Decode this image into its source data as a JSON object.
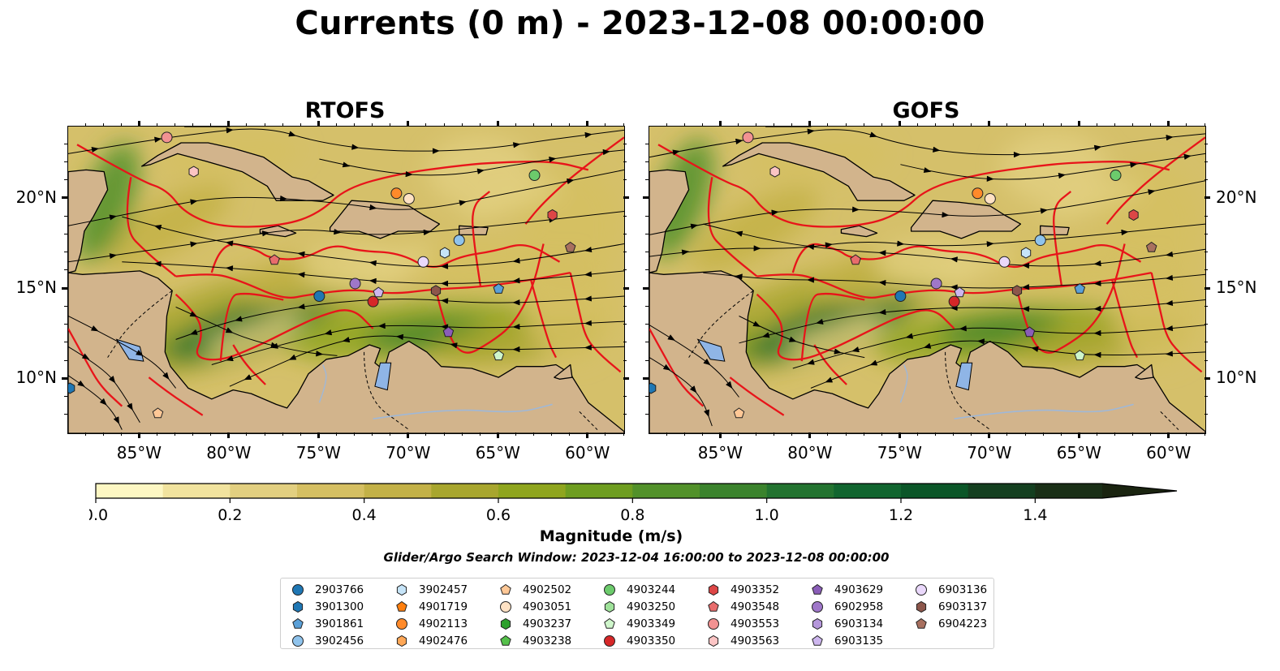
{
  "title": "Currents (0 m) - 2023-12-08 00:00:00",
  "panels": [
    {
      "id": "rtofs",
      "title": "RTOFS"
    },
    {
      "id": "gofs",
      "title": "GOFS"
    }
  ],
  "axes": {
    "lon_ticks": [
      "85°W",
      "80°W",
      "75°W",
      "70°W",
      "65°W",
      "60°W"
    ],
    "lat_ticks": [
      "20°N",
      "15°N",
      "10°N"
    ]
  },
  "colorbar": {
    "label": "Magnitude (m/s)",
    "ticks": [
      "0.0",
      "0.2",
      "0.4",
      "0.6",
      "0.8",
      "1.0",
      "1.2",
      "1.4"
    ],
    "range": [
      0,
      1.5
    ],
    "extend": "max",
    "colors": [
      "#fdf7c3",
      "#f1e39e",
      "#e2cf80",
      "#d5bf62",
      "#c3b147",
      "#a8a62e",
      "#8fa51e",
      "#6e9d20",
      "#52912a",
      "#3b832d",
      "#237330",
      "#11652f",
      "#0b5628",
      "#143f20",
      "#1a2f17"
    ]
  },
  "search_window": "Glider/Argo Search Window: 2023-12-04 16:00:00 to 2023-12-08 00:00:00",
  "legend": {
    "columns": [
      [
        {
          "id": "2903766",
          "color": "#1f77b4",
          "shape": "circle"
        },
        {
          "id": "3901300",
          "color": "#1f77b4",
          "shape": "hexagon"
        },
        {
          "id": "3901861",
          "color": "#5aa0d8",
          "shape": "pentagon"
        },
        {
          "id": "3902456",
          "color": "#8fc3ec",
          "shape": "circle"
        }
      ],
      [
        {
          "id": "3902457",
          "color": "#c6e4f8",
          "shape": "hexagon"
        },
        {
          "id": "4901719",
          "color": "#ff7f0e",
          "shape": "pentagon"
        },
        {
          "id": "4902113",
          "color": "#ff8a2a",
          "shape": "circle"
        },
        {
          "id": "4902476",
          "color": "#ffa756",
          "shape": "hexagon"
        }
      ],
      [
        {
          "id": "4902502",
          "color": "#ffc896",
          "shape": "pentagon"
        },
        {
          "id": "4903051",
          "color": "#ffe2c4",
          "shape": "circle"
        },
        {
          "id": "4903237",
          "color": "#2ca02c",
          "shape": "hexagon"
        },
        {
          "id": "4903238",
          "color": "#54c04a",
          "shape": "pentagon"
        }
      ],
      [
        {
          "id": "4903244",
          "color": "#6ccb6c",
          "shape": "circle"
        },
        {
          "id": "4903250",
          "color": "#9fe29a",
          "shape": "hexagon"
        },
        {
          "id": "4903349",
          "color": "#cff6cb",
          "shape": "pentagon"
        },
        {
          "id": "4903350",
          "color": "#d62728",
          "shape": "circle"
        }
      ],
      [
        {
          "id": "4903352",
          "color": "#dd4646",
          "shape": "hexagon"
        },
        {
          "id": "4903548",
          "color": "#e86c6c",
          "shape": "pentagon"
        },
        {
          "id": "4903553",
          "color": "#f29292",
          "shape": "circle"
        },
        {
          "id": "4903563",
          "color": "#fbc4c4",
          "shape": "hexagon"
        }
      ],
      [
        {
          "id": "4903629",
          "color": "#8a5db8",
          "shape": "pentagon"
        },
        {
          "id": "6902958",
          "color": "#9f77c9",
          "shape": "circle"
        },
        {
          "id": "6903134",
          "color": "#b597db",
          "shape": "hexagon"
        },
        {
          "id": "6903135",
          "color": "#cdb6ee",
          "shape": "pentagon"
        }
      ],
      [
        {
          "id": "6903136",
          "color": "#ead8fb",
          "shape": "circle"
        },
        {
          "id": "6903137",
          "color": "#8c564b",
          "shape": "hexagon"
        },
        {
          "id": "6904223",
          "color": "#a8705f",
          "shape": "pentagon"
        }
      ]
    ]
  },
  "floats": [
    {
      "color": "#f29292",
      "shape": "circle",
      "lon": -83.5,
      "lat": 23.4
    },
    {
      "color": "#fbc4c4",
      "shape": "hexagon",
      "lon": -82.0,
      "lat": 21.5
    },
    {
      "color": "#ff8a2a",
      "shape": "circle",
      "lon": -70.7,
      "lat": 20.3
    },
    {
      "color": "#ffe2c4",
      "shape": "circle",
      "lon": -70.0,
      "lat": 20.0
    },
    {
      "color": "#6ccb6c",
      "shape": "circle",
      "lon": -63.0,
      "lat": 21.3
    },
    {
      "color": "#dd4646",
      "shape": "hexagon",
      "lon": -62.0,
      "lat": 19.1
    },
    {
      "color": "#a8705f",
      "shape": "pentagon",
      "lon": -61.0,
      "lat": 17.3
    },
    {
      "color": "#8fc3ec",
      "shape": "circle",
      "lon": -67.2,
      "lat": 17.7
    },
    {
      "color": "#c6e4f8",
      "shape": "hexagon",
      "lon": -68.0,
      "lat": 17.0
    },
    {
      "color": "#ead8fb",
      "shape": "circle",
      "lon": -69.2,
      "lat": 16.5
    },
    {
      "color": "#e86c6c",
      "shape": "pentagon",
      "lon": -77.5,
      "lat": 16.6
    },
    {
      "color": "#8c564b",
      "shape": "hexagon",
      "lon": -68.5,
      "lat": 14.9
    },
    {
      "color": "#5aa0d8",
      "shape": "pentagon",
      "lon": -65.0,
      "lat": 15.0
    },
    {
      "color": "#1f77b4",
      "shape": "circle",
      "lon": -75.0,
      "lat": 14.6
    },
    {
      "color": "#9f77c9",
      "shape": "circle",
      "lon": -73.0,
      "lat": 15.3
    },
    {
      "color": "#cdb6ee",
      "shape": "pentagon",
      "lon": -71.7,
      "lat": 14.8
    },
    {
      "color": "#d62728",
      "shape": "circle",
      "lon": -72.0,
      "lat": 14.3
    },
    {
      "color": "#8a5db8",
      "shape": "pentagon",
      "lon": -67.8,
      "lat": 12.6
    },
    {
      "color": "#cff6cb",
      "shape": "pentagon",
      "lon": -65.0,
      "lat": 11.3
    },
    {
      "color": "#1f77b4",
      "shape": "hexagon",
      "lon": -88.9,
      "lat": 9.5
    },
    {
      "color": "#ffc896",
      "shape": "pentagon",
      "lon": -84.0,
      "lat": 8.1
    }
  ]
}
